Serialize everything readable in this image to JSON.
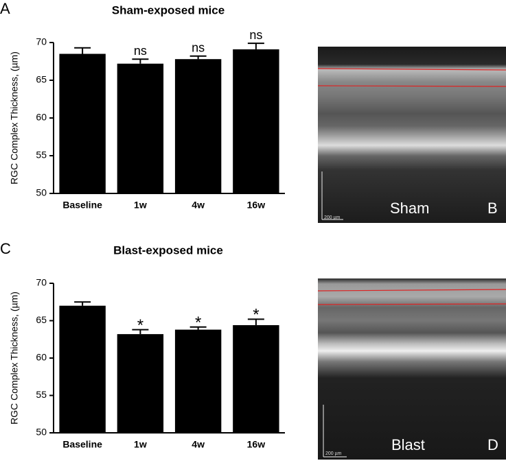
{
  "chart_data": [
    {
      "type": "bar",
      "panel_label": "A",
      "title": "Sham-exposed mice",
      "y_label": "RGC  Complex Thickness, (µm)",
      "categories": [
        "Baseline",
        "1w",
        "4w",
        "16w"
      ],
      "values": [
        68.5,
        67.2,
        67.8,
        69.1
      ],
      "errors": [
        0.8,
        0.6,
        0.4,
        0.8
      ],
      "annotations": [
        null,
        "ns",
        "ns",
        "ns"
      ],
      "color": "#000000",
      "ylim": [
        50,
        70
      ],
      "yticks": [
        50,
        55,
        60,
        65,
        70
      ]
    },
    {
      "type": "bar",
      "panel_label": "C",
      "title": "Blast-exposed mice",
      "y_label": "RGC  Complex Thickness, (µm)",
      "categories": [
        "Baseline",
        "1w",
        "4w",
        "16w"
      ],
      "values": [
        67.0,
        63.2,
        63.8,
        64.4
      ],
      "errors": [
        0.5,
        0.6,
        0.35,
        0.8
      ],
      "annotations": [
        null,
        "*",
        "*",
        "*"
      ],
      "color": "#000000",
      "ylim": [
        50,
        70
      ],
      "yticks": [
        50,
        55,
        60,
        65,
        70
      ]
    }
  ],
  "images": [
    {
      "panel_label": "B",
      "label": "Sham",
      "scale_bar": "200 µm"
    },
    {
      "panel_label": "D",
      "label": "Blast",
      "scale_bar": "200 µm"
    }
  ]
}
